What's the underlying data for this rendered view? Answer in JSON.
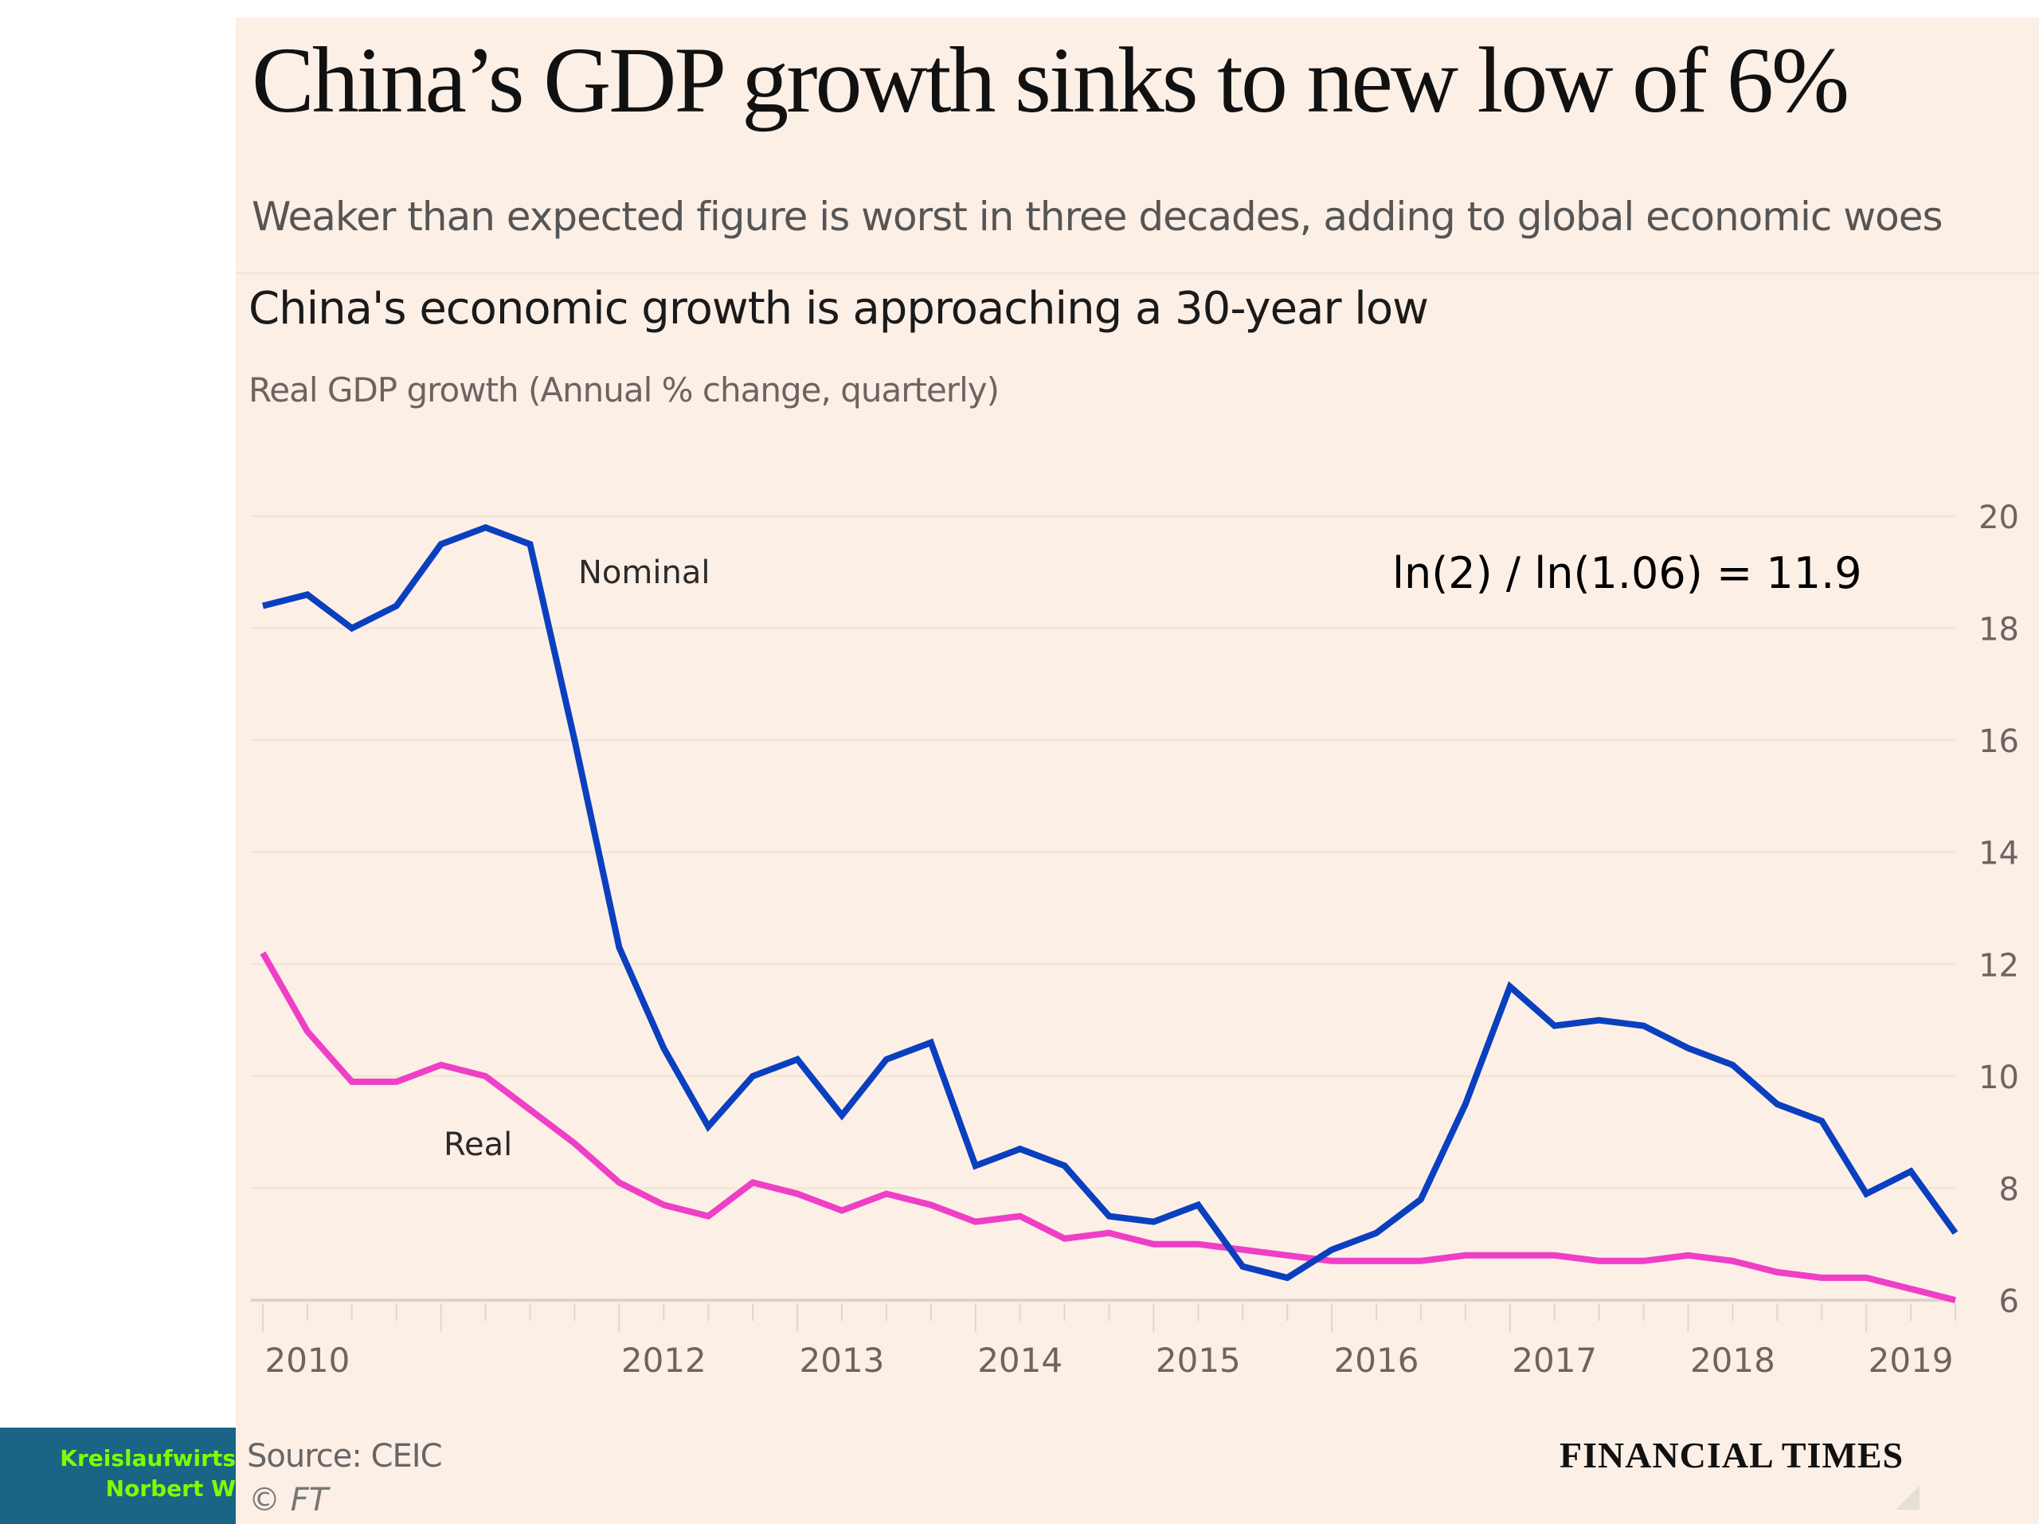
{
  "article": {
    "headline": "China’s GDP growth sinks to new low of 6%",
    "standfirst": "Weaker than expected figure is worst in three decades, adding to global economic woes"
  },
  "annotation": "ln(2) / ln(1.06) = 11.9",
  "footer": {
    "source": "Source: CEIC",
    "copyright": "© FT",
    "brand": "FINANCIAL TIMES",
    "slide_band_line1": "Kreislaufwirts",
    "slide_band_line2": "Norbert W"
  },
  "colors": {
    "background": "#fcefe6",
    "nominal": "#0a3fbf",
    "real": "#ee3fc6",
    "slide_band": "#1a6585",
    "slide_band_text": "#7cff00"
  },
  "chart_data": {
    "type": "line",
    "title": "China's economic growth is approaching a 30-year low",
    "subtitle": "Real GDP growth (Annual % change, quarterly)",
    "xlabel": "",
    "ylabel": "",
    "x": [
      "2010Q1",
      "2010Q2",
      "2010Q3",
      "2010Q4",
      "2011Q1",
      "2011Q2",
      "2011Q3",
      "2011Q4",
      "2012Q1",
      "2012Q2",
      "2012Q3",
      "2012Q4",
      "2013Q1",
      "2013Q2",
      "2013Q3",
      "2013Q4",
      "2014Q1",
      "2014Q2",
      "2014Q3",
      "2014Q4",
      "2015Q1",
      "2015Q2",
      "2015Q3",
      "2015Q4",
      "2016Q1",
      "2016Q2",
      "2016Q3",
      "2016Q4",
      "2017Q1",
      "2017Q2",
      "2017Q3",
      "2017Q4",
      "2018Q1",
      "2018Q2",
      "2018Q3",
      "2018Q4",
      "2019Q1",
      "2019Q2",
      "2019Q3"
    ],
    "x_tick_labels": [
      "2010",
      "2012",
      "2013",
      "2014",
      "2015",
      "2016",
      "2017",
      "2018",
      "2019"
    ],
    "x_tick_label_positions": [
      1,
      9,
      13,
      17,
      21,
      25,
      29,
      33,
      37
    ],
    "y_ticks": [
      6,
      8,
      10,
      12,
      14,
      16,
      18,
      20
    ],
    "ylim": [
      6,
      20
    ],
    "y_axis_side": "right",
    "grid": true,
    "legend": "inline labels",
    "series": [
      {
        "name": "Nominal",
        "label_near": "2011Q4",
        "values": [
          18.4,
          18.6,
          18.0,
          18.4,
          19.5,
          19.8,
          19.5,
          16.0,
          12.3,
          10.5,
          9.1,
          10.0,
          10.3,
          9.3,
          10.3,
          10.6,
          8.4,
          8.7,
          8.4,
          7.5,
          7.4,
          7.7,
          6.6,
          6.4,
          6.9,
          7.2,
          7.8,
          9.5,
          11.6,
          10.9,
          11.0,
          10.9,
          10.5,
          10.2,
          9.5,
          9.2,
          7.9,
          8.3,
          7.2
        ]
      },
      {
        "name": "Real",
        "label_near": "2011Q2",
        "values": [
          12.2,
          10.8,
          9.9,
          9.9,
          10.2,
          10.0,
          9.4,
          8.8,
          8.1,
          7.7,
          7.5,
          8.1,
          7.9,
          7.6,
          7.9,
          7.7,
          7.4,
          7.5,
          7.1,
          7.2,
          7.0,
          7.0,
          6.9,
          6.8,
          6.7,
          6.7,
          6.7,
          6.8,
          6.8,
          6.8,
          6.7,
          6.7,
          6.8,
          6.7,
          6.5,
          6.4,
          6.4,
          6.2,
          6.0
        ]
      }
    ]
  }
}
